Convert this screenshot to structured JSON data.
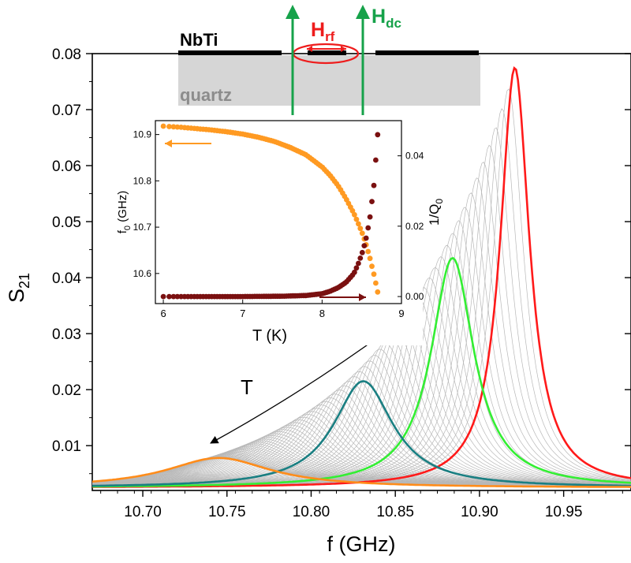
{
  "chart_data": [
    {
      "type": "line",
      "role": "main",
      "xlabel": "f  (GHz)",
      "ylabel": "S",
      "ylabel_sub": "21",
      "xlim": [
        10.67,
        10.99
      ],
      "ylim": [
        0.002,
        0.08
      ],
      "x_ticks": [
        10.7,
        10.75,
        10.8,
        10.85,
        10.9,
        10.95
      ],
      "x_tick_labels": [
        "10.70",
        "10.75",
        "10.80",
        "10.85",
        "10.90",
        "10.95"
      ],
      "y_ticks": [
        0.01,
        0.02,
        0.03,
        0.04,
        0.05,
        0.06,
        0.07,
        0.08
      ],
      "y_tick_labels": [
        "0.01",
        "0.02",
        "0.03",
        "0.04",
        "0.05",
        "0.06",
        "0.07",
        "0.08"
      ],
      "grid": false,
      "background_curves": {
        "color": "#b8b8b8",
        "from_center": 10.745,
        "to_center": 10.921,
        "count": 70
      },
      "series": [
        {
          "color": "#ff1a1a",
          "center": 10.921,
          "peak": 0.0775,
          "halfwidth": 0.0105
        },
        {
          "color": "#33ee33",
          "center": 10.884,
          "peak": 0.0435,
          "halfwidth": 0.0155
        },
        {
          "color": "#1a7f82",
          "center": 10.831,
          "peak": 0.0215,
          "halfwidth": 0.0215
        },
        {
          "color": "#ff8c1a",
          "center": 10.745,
          "peak": 0.0078,
          "halfwidth": 0.038
        }
      ],
      "annotation": {
        "text": "T"
      }
    },
    {
      "type": "scatter",
      "role": "inset",
      "xlabel": "T  (K)",
      "ylabel_left": "f",
      "ylabel_left_sub": "0",
      "ylabel_left_rest": " (GHz)",
      "ylabel_right": "1/Q",
      "ylabel_right_sub": "0",
      "xlim": [
        5.9,
        9.0
      ],
      "ylim_left": [
        10.535,
        10.93
      ],
      "ylim_right": [
        -0.002,
        0.05
      ],
      "x_ticks": [
        6,
        7,
        8,
        9
      ],
      "x_tick_labels": [
        "6",
        "7",
        "8",
        "9"
      ],
      "y_left_ticks": [
        10.6,
        10.7,
        10.8,
        10.9
      ],
      "y_left_tick_labels": [
        "10.6",
        "10.7",
        "10.8",
        "10.9"
      ],
      "y_right_ticks": [
        0.0,
        0.02,
        0.04
      ],
      "y_right_tick_labels": [
        "0.00",
        "0.02",
        "0.04"
      ],
      "series": [
        {
          "axis": "left",
          "color": "#ff9a22",
          "x": [
            6.0,
            6.2,
            6.4,
            6.6,
            6.8,
            7.0,
            7.2,
            7.4,
            7.6,
            7.8,
            8.0,
            8.1,
            8.2,
            8.3,
            8.4,
            8.5,
            8.55,
            8.6,
            8.65,
            8.7
          ],
          "y": [
            10.918,
            10.916,
            10.913,
            10.91,
            10.906,
            10.901,
            10.894,
            10.885,
            10.872,
            10.856,
            10.83,
            10.812,
            10.79,
            10.762,
            10.73,
            10.69,
            10.665,
            10.635,
            10.6,
            10.56
          ]
        },
        {
          "axis": "right",
          "color": "#7a1010",
          "x": [
            6.0,
            6.5,
            7.0,
            7.5,
            7.8,
            8.0,
            8.1,
            8.2,
            8.3,
            8.4,
            8.45,
            8.5,
            8.55,
            8.6,
            8.65,
            8.7
          ],
          "y": [
            0.0,
            0.0,
            0.0,
            0.0001,
            0.0003,
            0.0008,
            0.0015,
            0.0025,
            0.004,
            0.0065,
            0.009,
            0.012,
            0.016,
            0.022,
            0.031,
            0.046
          ]
        }
      ]
    }
  ],
  "schematic": {
    "film_label": "NbTi",
    "substrate_label": "quartz",
    "hrf_main": "H",
    "hrf_sub": "rf",
    "hdc_main": "H",
    "hdc_sub": "dc",
    "colors": {
      "hrf": "#ee1c1c",
      "hdc": "#16a24a",
      "substrate": "#d6d6d6",
      "film": "#000000"
    }
  }
}
